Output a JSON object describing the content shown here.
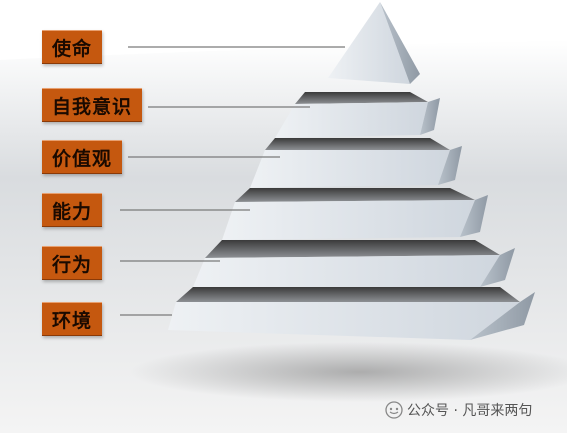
{
  "levels": [
    {
      "label": "使命"
    },
    {
      "label": "自我意识"
    },
    {
      "label": "价值观"
    },
    {
      "label": "能力"
    },
    {
      "label": "行为"
    },
    {
      "label": "环境"
    }
  ],
  "watermark": {
    "text": "公众号 · 凡哥来两句"
  },
  "colors": {
    "label_bg": "#c5580f",
    "pyramid_face": "#dde3ea",
    "pyramid_side": "#a9b3be",
    "leader_line": "#7a7a7a"
  }
}
